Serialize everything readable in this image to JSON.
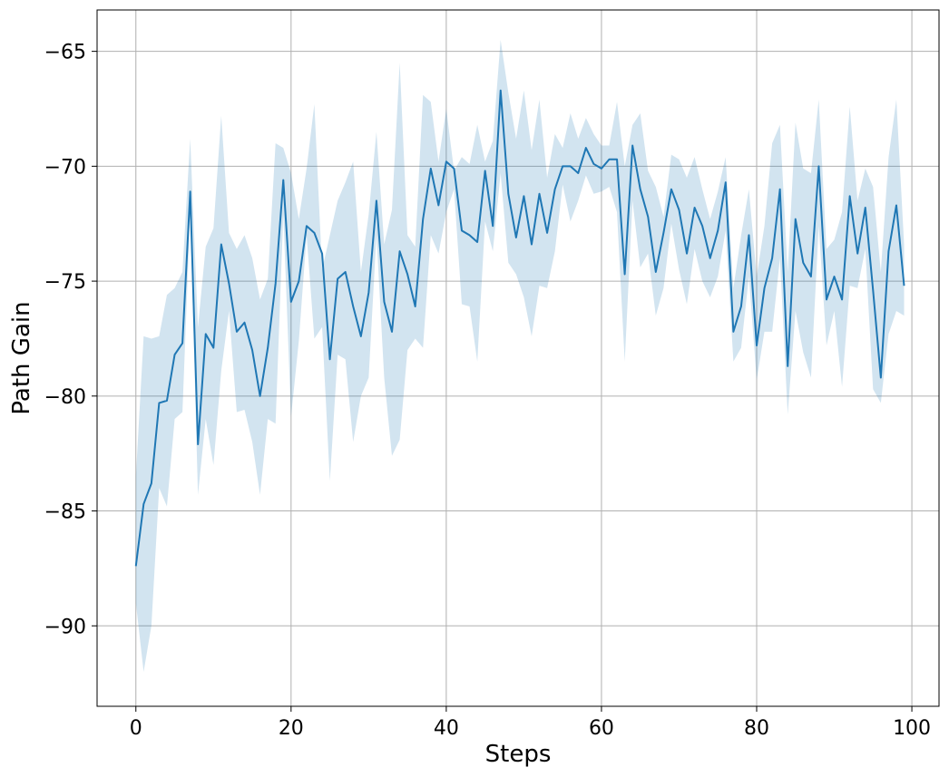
{
  "chart_data": {
    "type": "line",
    "title": "",
    "xlabel": "Steps",
    "ylabel": "Path Gain",
    "xlim": [
      -5,
      103.5
    ],
    "ylim": [
      -93.5,
      -63.2
    ],
    "x_ticks": [
      0,
      20,
      40,
      60,
      80,
      100
    ],
    "y_ticks": [
      -90,
      -85,
      -80,
      -75,
      -70,
      -65
    ],
    "x_tick_labels": [
      "0",
      "20",
      "40",
      "60",
      "80",
      "100"
    ],
    "y_tick_labels": [
      "−90",
      "−85",
      "−80",
      "−75",
      "−70",
      "−65"
    ],
    "grid": true,
    "line_color": "#1f77b4",
    "band_color": "#1f77b4",
    "series": [
      {
        "x": [
          0,
          1,
          2,
          3,
          4,
          5,
          6,
          7,
          8,
          9,
          10,
          11,
          12,
          13,
          14,
          15,
          16,
          17,
          18,
          19,
          20,
          21,
          22,
          23,
          24,
          25,
          26,
          27,
          28,
          29,
          30,
          31,
          32,
          33,
          34,
          35,
          36,
          37,
          38,
          39,
          40,
          41,
          42,
          43,
          44,
          45,
          46,
          47,
          48,
          49,
          50,
          51,
          52,
          53,
          54,
          55,
          56,
          57,
          58,
          59,
          60,
          61,
          62,
          63,
          64,
          65,
          66,
          67,
          68,
          69,
          70,
          71,
          72,
          73,
          74,
          75,
          76,
          77,
          78,
          79,
          80,
          81,
          82,
          83,
          84,
          85,
          86,
          87,
          88,
          89,
          90,
          91,
          92,
          93,
          94,
          95,
          96,
          97,
          98,
          99
        ],
        "values": [
          -87.4,
          -84.7,
          -83.8,
          -80.3,
          -80.2,
          -78.2,
          -77.7,
          -71.1,
          -82.1,
          -77.3,
          -77.9,
          -73.4,
          -75.1,
          -77.2,
          -76.8,
          -78.0,
          -80.0,
          -77.9,
          -75.1,
          -70.6,
          -75.9,
          -75.0,
          -72.6,
          -72.9,
          -73.8,
          -78.4,
          -74.9,
          -74.6,
          -76.1,
          -77.4,
          -75.5,
          -71.5,
          -75.9,
          -77.2,
          -73.7,
          -74.7,
          -76.1,
          -72.3,
          -70.1,
          -71.7,
          -69.8,
          -70.1,
          -72.8,
          -73.0,
          -73.3,
          -70.2,
          -72.6,
          -66.7,
          -71.2,
          -73.1,
          -71.3,
          -73.4,
          -71.2,
          -72.9,
          -71.0,
          -70.0,
          -70.0,
          -70.3,
          -69.2,
          -69.9,
          -70.1,
          -69.7,
          -69.7,
          -74.7,
          -69.1,
          -71.0,
          -72.2,
          -74.6,
          -72.9,
          -71.0,
          -71.9,
          -73.8,
          -71.8,
          -72.6,
          -74.0,
          -72.8,
          -70.7,
          -77.2,
          -76.1,
          -73.0,
          -77.8,
          -75.3,
          -74.0,
          -71.0,
          -78.7,
          -72.3,
          -74.2,
          -74.8,
          -70.0,
          -75.8,
          -74.8,
          -75.8,
          -71.3,
          -73.8,
          -71.8,
          -75.4,
          -79.2,
          -73.7,
          -71.7,
          -75.2
        ],
        "upper": [
          -83.5,
          -77.4,
          -77.5,
          -77.4,
          -75.6,
          -75.3,
          -74.6,
          -68.8,
          -77.0,
          -73.5,
          -72.7,
          -67.8,
          -72.9,
          -73.6,
          -73.0,
          -74.0,
          -75.8,
          -74.9,
          -69.0,
          -69.2,
          -70.3,
          -72.3,
          -70.1,
          -67.3,
          -74.5,
          -73.0,
          -71.5,
          -70.7,
          -69.8,
          -74.6,
          -72.1,
          -68.5,
          -73.4,
          -71.9,
          -65.5,
          -73.0,
          -73.5,
          -66.9,
          -67.2,
          -69.8,
          -67.5,
          -70.2,
          -69.6,
          -69.9,
          -68.2,
          -69.8,
          -68.9,
          -64.5,
          -66.8,
          -68.8,
          -66.7,
          -69.3,
          -67.1,
          -70.5,
          -68.6,
          -69.2,
          -67.7,
          -68.8,
          -67.9,
          -68.6,
          -69.1,
          -69.1,
          -67.2,
          -70.0,
          -68.2,
          -67.7,
          -70.2,
          -70.9,
          -72.2,
          -69.5,
          -69.7,
          -70.5,
          -69.6,
          -71.0,
          -72.3,
          -71.1,
          -69.6,
          -75.3,
          -73.0,
          -71.0,
          -74.8,
          -72.6,
          -69.0,
          -68.2,
          -74.6,
          -68.1,
          -70.1,
          -70.3,
          -67.1,
          -73.6,
          -73.2,
          -72.0,
          -67.4,
          -71.5,
          -70.1,
          -70.9,
          -74.6,
          -69.6,
          -67.1,
          -73.4
        ],
        "lower": [
          -89.0,
          -92.0,
          -90.0,
          -84.0,
          -84.8,
          -81.0,
          -80.7,
          -72.0,
          -84.3,
          -81.0,
          -83.0,
          -78.9,
          -76.3,
          -80.7,
          -80.6,
          -82.0,
          -84.3,
          -81.0,
          -81.2,
          -72.1,
          -80.9,
          -77.6,
          -73.0,
          -77.5,
          -77.0,
          -83.7,
          -78.2,
          -78.4,
          -82.0,
          -80.0,
          -79.2,
          -73.0,
          -79.2,
          -82.6,
          -81.9,
          -78.0,
          -77.5,
          -77.9,
          -73.0,
          -73.8,
          -72.0,
          -71.0,
          -76.0,
          -76.1,
          -78.5,
          -72.4,
          -73.7,
          -70.3,
          -74.2,
          -74.7,
          -75.7,
          -77.4,
          -75.2,
          -75.3,
          -73.7,
          -70.8,
          -72.4,
          -71.5,
          -70.4,
          -71.2,
          -71.1,
          -70.9,
          -72.0,
          -78.5,
          -71.5,
          -74.4,
          -73.8,
          -76.5,
          -75.3,
          -72.5,
          -74.5,
          -76.0,
          -73.6,
          -75.0,
          -75.7,
          -74.8,
          -72.8,
          -78.5,
          -77.9,
          -74.8,
          -79.3,
          -77.2,
          -77.2,
          -74.0,
          -80.8,
          -76.3,
          -78.1,
          -79.2,
          -72.6,
          -77.8,
          -76.3,
          -79.6,
          -75.2,
          -75.3,
          -73.6,
          -79.7,
          -80.3,
          -77.3,
          -76.3,
          -76.5
        ]
      }
    ]
  }
}
